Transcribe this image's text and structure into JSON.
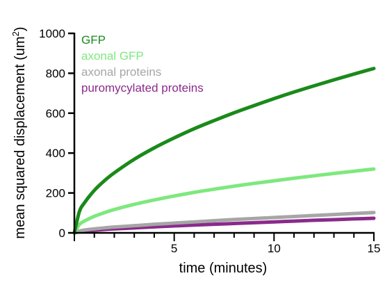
{
  "chart_data": {
    "type": "line",
    "xlabel": "time (minutes)",
    "ylabel_main": "mean squared displacement (um",
    "ylabel_sup": "2",
    "ylabel_close": ")",
    "xlim": [
      0,
      15
    ],
    "ylim": [
      0,
      1000
    ],
    "xticks": [
      5,
      10,
      15
    ],
    "xminor": [
      0,
      1,
      2,
      3,
      4,
      5,
      6,
      7,
      8,
      9,
      10,
      11,
      12,
      13,
      14,
      15
    ],
    "yticks": [
      0,
      200,
      400,
      600,
      800,
      1000
    ],
    "grid": false,
    "legend_placement": "top-left",
    "x": [
      0,
      0.25,
      0.5,
      1,
      1.5,
      2,
      3,
      4,
      5,
      6,
      7,
      8,
      9,
      10,
      11,
      12,
      13,
      14,
      15
    ],
    "series": [
      {
        "name": "GFP",
        "color": "#1a8a1a",
        "values": [
          0,
          106,
          150,
          213,
          261,
          301,
          369,
          426,
          476,
          522,
          563,
          602,
          638,
          673,
          706,
          737,
          767,
          796,
          824
        ]
      },
      {
        "name": "axonal GFP",
        "color": "#7ee87e",
        "values": [
          0,
          42,
          59,
          83,
          101,
          117,
          143,
          165,
          185,
          203,
          219,
          234,
          248,
          261,
          274,
          286,
          298,
          309,
          320
        ]
      },
      {
        "name": "axonal proteins",
        "color": "#a6a6a6",
        "values": [
          0,
          9,
          14,
          20,
          25,
          29,
          36,
          43,
          49,
          55,
          61,
          67,
          72,
          77,
          82,
          87,
          92,
          97,
          102
        ]
      },
      {
        "name": "puromycylated proteins",
        "color": "#8b2a8b",
        "values": [
          0,
          6,
          9,
          13,
          17,
          20,
          25,
          30,
          35,
          39,
          43,
          47,
          51,
          55,
          59,
          63,
          66,
          70,
          73
        ]
      }
    ]
  }
}
